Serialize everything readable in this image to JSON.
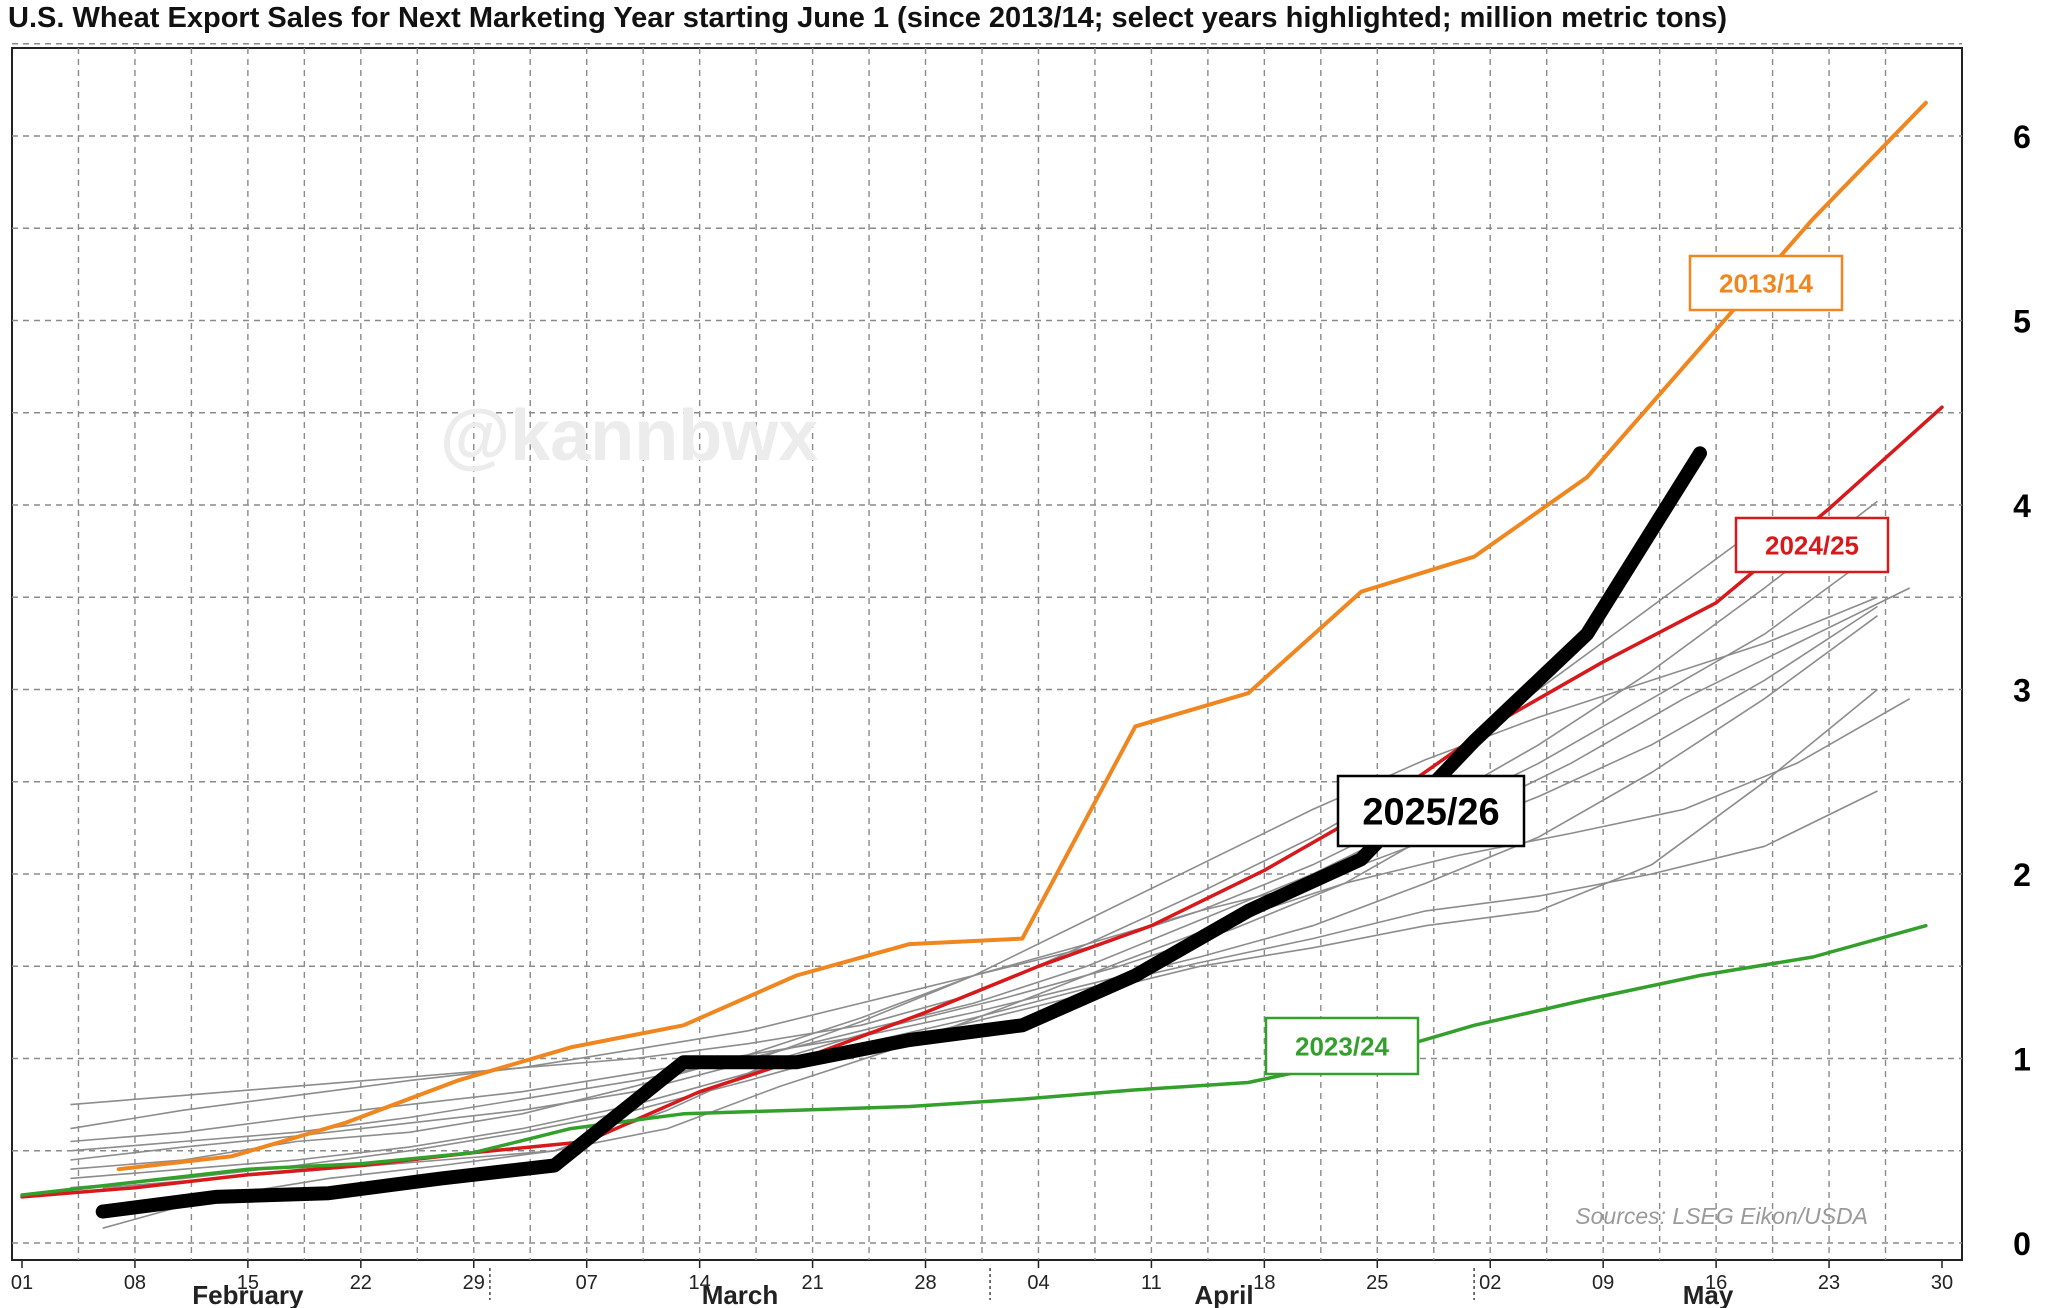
{
  "chart_data": {
    "type": "line",
    "title": "U.S. Wheat Export Sales for Next Marketing Year starting June 1 (since 2013/14; select years highlighted; million metric tons)",
    "xlabel": "",
    "ylabel": "",
    "x_unit": "days since Feb 1",
    "xlim": [
      0,
      119
    ],
    "ylim": [
      0,
      6.5
    ],
    "y_ticks": [
      0,
      1,
      2,
      3,
      4,
      5,
      6
    ],
    "x_tick_days": [
      0,
      7,
      14,
      21,
      28,
      35,
      42,
      49,
      56,
      63,
      70,
      77,
      84,
      91,
      98,
      105,
      112,
      119
    ],
    "x_tick_labels": [
      "01",
      "08",
      "15",
      "22",
      "29",
      "07",
      "14",
      "21",
      "28",
      "04",
      "11",
      "18",
      "25",
      "02",
      "09",
      "16",
      "23",
      "30"
    ],
    "x_minor_grid_days": [
      3.5,
      10.5,
      17.5,
      24.5,
      31.5,
      38.5,
      45.5,
      52.5,
      59.5,
      66.5,
      73.5,
      80.5,
      87.5,
      94.5,
      101.5,
      108.5,
      115.5
    ],
    "months": [
      {
        "label": "February",
        "center_day": 14
      },
      {
        "label": "March",
        "center_day": 44.5
      },
      {
        "label": "April",
        "center_day": 74.5
      },
      {
        "label": "May",
        "center_day": 104.5
      }
    ],
    "month_separators_day": [
      29,
      60,
      90
    ],
    "grid": true,
    "watermark": "@kannbwx",
    "source": "Sources: LSEG Eikon/USDA",
    "series": [
      {
        "name": "2013/14",
        "color": "#f0861f",
        "width": 4,
        "x": [
          6,
          13,
          20,
          27,
          34,
          41,
          48,
          55,
          62,
          69,
          76,
          83,
          90,
          97,
          104,
          111,
          118
        ],
        "y": [
          0.4,
          0.47,
          0.65,
          0.88,
          1.06,
          1.18,
          1.45,
          1.62,
          1.65,
          2.8,
          2.98,
          3.53,
          3.72,
          4.15,
          4.85,
          5.55,
          6.18
        ]
      },
      {
        "name": "2024/25",
        "color": "#d7191c",
        "width": 3.5,
        "x": [
          0,
          7,
          14,
          21,
          28,
          35,
          42,
          49,
          56,
          63,
          70,
          77,
          84,
          91,
          98,
          105,
          112,
          119
        ],
        "y": [
          0.25,
          0.3,
          0.37,
          0.42,
          0.49,
          0.55,
          0.82,
          1.02,
          1.25,
          1.5,
          1.72,
          2.02,
          2.37,
          2.8,
          3.15,
          3.47,
          3.98,
          4.53
        ]
      },
      {
        "name": "2023/24",
        "color": "#33a02c",
        "width": 3.5,
        "x": [
          0,
          7,
          14,
          21,
          28,
          34,
          41,
          48,
          55,
          62,
          69,
          76,
          83,
          90,
          97,
          104,
          111,
          118
        ],
        "y": [
          0.26,
          0.33,
          0.4,
          0.43,
          0.49,
          0.62,
          0.7,
          0.72,
          0.74,
          0.78,
          0.83,
          0.87,
          1.0,
          1.18,
          1.32,
          1.45,
          1.55,
          1.72
        ]
      },
      {
        "name": "2025/26",
        "color": "#000000",
        "width": 14,
        "x": [
          5,
          12,
          19,
          26,
          33,
          41,
          48,
          55,
          62,
          69,
          76,
          83,
          90,
          97,
          104
        ],
        "y": [
          0.17,
          0.25,
          0.27,
          0.35,
          0.42,
          0.98,
          0.98,
          1.1,
          1.18,
          1.45,
          1.8,
          2.08,
          2.72,
          3.3,
          4.28
        ]
      }
    ],
    "background_series": [
      {
        "x": [
          3,
          10,
          17,
          24,
          31,
          38,
          45,
          52,
          59,
          66,
          73,
          80,
          87,
          94,
          101,
          108
        ],
        "y": [
          0.62,
          0.72,
          0.8,
          0.88,
          0.95,
          1.0,
          1.08,
          1.18,
          1.35,
          1.62,
          1.9,
          2.2,
          2.55,
          3.0,
          3.45,
          3.9
        ]
      },
      {
        "x": [
          3,
          10,
          17,
          24,
          31,
          38,
          45,
          52,
          59,
          66,
          73,
          80,
          87,
          94,
          101,
          108,
          115
        ],
        "y": [
          0.75,
          0.8,
          0.85,
          0.9,
          0.95,
          1.05,
          1.15,
          1.3,
          1.45,
          1.6,
          1.8,
          2.05,
          2.35,
          2.7,
          3.1,
          3.55,
          4.02
        ]
      },
      {
        "x": [
          3,
          10,
          17,
          24,
          31,
          38,
          45,
          52,
          59,
          66,
          73,
          80,
          87,
          94,
          101,
          108,
          115
        ],
        "y": [
          0.55,
          0.6,
          0.68,
          0.75,
          0.82,
          0.92,
          1.02,
          1.12,
          1.25,
          1.4,
          1.55,
          1.72,
          1.95,
          2.2,
          2.55,
          2.95,
          3.4
        ]
      },
      {
        "x": [
          5,
          12,
          19,
          26,
          33,
          40,
          47,
          54,
          61,
          68,
          75,
          82,
          89,
          96,
          103,
          110,
          117
        ],
        "y": [
          0.3,
          0.35,
          0.4,
          0.45,
          0.5,
          0.62,
          0.85,
          1.05,
          1.28,
          1.52,
          1.75,
          1.95,
          2.1,
          2.22,
          2.35,
          2.6,
          2.95
        ]
      },
      {
        "x": [
          5,
          12,
          19,
          26,
          33,
          40,
          47,
          54,
          61,
          68,
          75,
          82,
          89,
          96,
          103,
          110,
          117
        ],
        "y": [
          0.08,
          0.25,
          0.35,
          0.42,
          0.5,
          0.72,
          1.0,
          1.18,
          1.33,
          1.5,
          1.7,
          1.95,
          2.3,
          2.6,
          2.95,
          3.25,
          3.55
        ]
      },
      {
        "x": [
          3,
          10,
          17,
          24,
          31,
          38,
          45,
          52,
          59,
          66,
          73,
          80,
          87,
          94,
          101,
          108,
          115
        ],
        "y": [
          0.4,
          0.45,
          0.55,
          0.6,
          0.7,
          0.85,
          1.02,
          1.22,
          1.45,
          1.75,
          2.05,
          2.35,
          2.62,
          2.85,
          3.05,
          3.25,
          3.5
        ]
      },
      {
        "x": [
          3,
          10,
          17,
          24,
          31,
          38,
          45,
          52,
          59,
          66,
          73,
          80,
          87,
          94,
          101,
          108,
          115
        ],
        "y": [
          0.45,
          0.52,
          0.58,
          0.65,
          0.72,
          0.82,
          0.98,
          1.2,
          1.45,
          1.62,
          1.8,
          1.95,
          2.18,
          2.42,
          2.7,
          3.05,
          3.45
        ]
      },
      {
        "x": [
          3,
          10,
          17,
          24,
          31,
          38,
          45,
          52,
          59,
          66,
          73,
          80,
          87,
          94,
          101,
          108,
          115
        ],
        "y": [
          0.35,
          0.4,
          0.45,
          0.52,
          0.62,
          0.75,
          0.92,
          1.08,
          1.22,
          1.38,
          1.52,
          1.65,
          1.8,
          1.88,
          2.0,
          2.15,
          2.45
        ]
      },
      {
        "x": [
          3,
          10,
          17,
          24,
          31,
          38,
          45,
          52,
          59,
          66,
          73,
          80,
          87,
          94,
          101,
          108,
          115
        ],
        "y": [
          0.3,
          0.35,
          0.42,
          0.5,
          0.6,
          0.72,
          0.88,
          1.05,
          1.2,
          1.35,
          1.5,
          1.6,
          1.72,
          1.8,
          2.05,
          2.5,
          3.0
        ]
      },
      {
        "x": [
          3,
          10,
          17,
          24,
          31,
          38,
          45,
          52,
          59,
          66,
          73,
          80,
          87,
          94,
          101,
          108,
          115
        ],
        "y": [
          0.5,
          0.55,
          0.6,
          0.68,
          0.78,
          0.88,
          1.0,
          1.15,
          1.3,
          1.5,
          1.75,
          2.0,
          2.3,
          2.6,
          2.95,
          3.3,
          3.75
        ]
      }
    ],
    "labels": [
      {
        "text": "2013/14",
        "series": "2013/14",
        "color": "#f0861f"
      },
      {
        "text": "2024/25",
        "series": "2024/25",
        "color": "#d7191c"
      },
      {
        "text": "2023/24",
        "series": "2023/24",
        "color": "#33a02c"
      },
      {
        "text": "2025/26",
        "series": "2025/26",
        "color": "#000000"
      }
    ]
  }
}
